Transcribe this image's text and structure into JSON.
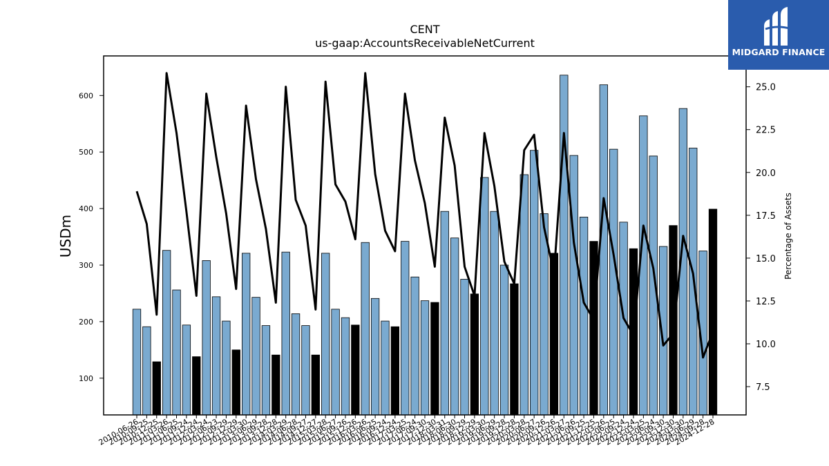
{
  "chart_data": {
    "type": "bar",
    "title": "CENT",
    "subtitle": "us-gaap:AccountsReceivableNetCurrent",
    "ylabel": "USDm",
    "y2label": "Percentage of Assets",
    "ylim": [
      35,
      670
    ],
    "y2lim": [
      5.85,
      26.8
    ],
    "yticks": [
      100,
      200,
      300,
      400,
      500,
      600
    ],
    "y2ticks": [
      "7.5",
      "10.0",
      "12.5",
      "15.0",
      "17.5",
      "20.0",
      "22.5",
      "25.0"
    ],
    "bar_color": "#7aaad0",
    "highlight_color": "#000000",
    "line_color": "#000000",
    "categories": [
      "2010-06-26",
      "2010-09-25",
      "2010-12-25",
      "2011-03-26",
      "2011-06-25",
      "2011-09-24",
      "2011-12-24",
      "2012-03-24",
      "2012-06-23",
      "2012-09-29",
      "2012-12-29",
      "2013-03-30",
      "2013-06-29",
      "2013-09-28",
      "2013-12-28",
      "2014-03-29",
      "2014-06-28",
      "2014-09-27",
      "2014-12-27",
      "2015-03-28",
      "2015-06-27",
      "2015-09-26",
      "2015-12-26",
      "2016-03-26",
      "2016-06-25",
      "2016-09-24",
      "2016-12-24",
      "2017-03-25",
      "2017-06-24",
      "2017-09-30",
      "2017-12-30",
      "2018-03-31",
      "2018-06-30",
      "2018-09-29",
      "2018-12-29",
      "2019-03-30",
      "2019-06-29",
      "2019-09-28",
      "2019-12-28",
      "2020-03-28",
      "2020-06-27",
      "2020-09-26",
      "2020-12-26",
      "2021-03-27",
      "2021-06-26",
      "2021-09-25",
      "2021-12-25",
      "2022-03-26",
      "2022-06-25",
      "2022-09-24",
      "2022-12-24",
      "2023-03-25",
      "2023-06-24",
      "2023-09-30",
      "2023-12-30",
      "2024-03-30",
      "2024-06-29",
      "2024-09-28",
      "2024-12-28"
    ],
    "tick_labels": [
      "2010-06-26",
      "2010-09-25",
      "2010-12-25",
      "2011-03-26",
      "2011-06-25",
      "2011-09-24",
      "2011-12-24",
      "2012-03-24",
      "2012-06-23",
      "2012-09-29",
      "2012-12-29",
      "2013-03-30",
      "2013-06-29",
      "2013-09-28",
      "2013-12-28",
      "2014-03-29",
      "2014-06-28",
      "2014-09-27",
      "2014-12-27",
      "2015-03-28",
      "2015-06-27",
      "2015-09-26",
      "2015-12-26",
      "2016-03-26",
      "2016-06-25",
      "2016-09-24",
      "2016-12-24",
      "2017-03-25",
      "2017-06-24",
      "2017-09-30",
      "2017-12-30",
      "2018-03-31",
      "2018-06-30",
      "2018-09-29",
      "2018-12-29",
      "2019-03-30",
      "2019-06-29",
      "2019-09-28",
      "2019-12-28",
      "2020-03-28",
      "2020-06-27",
      "2020-09-26",
      "2020-12-26",
      "2021-03-27",
      "2021-06-26",
      "2021-09-25",
      "2021-12-25",
      "2022-03-26",
      "2022-06-25",
      "2022-09-24",
      "2022-12-24",
      "2023-03-25",
      "2023-06-24",
      "2023-09-30",
      "2023-12-30",
      "2024-03-30",
      "2024-06-29",
      "2024-09-28",
      "2024-12-28"
    ],
    "series": [
      {
        "name": "AccountsReceivableNetCurrent",
        "kind": "bar",
        "values": [
          222,
          191,
          129,
          326,
          256,
          194,
          138,
          308,
          244,
          201,
          150,
          321,
          243,
          193,
          141,
          323,
          214,
          193,
          141,
          321,
          222,
          207,
          194,
          340,
          241,
          201,
          191,
          342,
          279,
          237,
          234,
          395,
          348,
          275,
          249,
          455,
          395,
          300,
          267,
          460,
          503,
          391,
          321,
          636,
          494,
          385,
          342,
          619,
          505,
          376,
          329,
          564,
          493,
          333,
          370,
          577,
          507,
          325,
          399
        ],
        "highlighted": [
          false,
          false,
          true,
          false,
          false,
          false,
          true,
          false,
          false,
          false,
          true,
          false,
          false,
          false,
          true,
          false,
          false,
          false,
          true,
          false,
          false,
          false,
          true,
          false,
          false,
          false,
          true,
          false,
          false,
          false,
          true,
          false,
          false,
          false,
          true,
          false,
          false,
          false,
          true,
          false,
          false,
          false,
          true,
          false,
          false,
          false,
          true,
          false,
          false,
          false,
          true,
          false,
          false,
          false,
          true,
          false,
          false,
          false,
          true
        ]
      },
      {
        "name": "Percentage of Assets",
        "kind": "line",
        "axis": "right",
        "values": [
          18.9,
          17.0,
          11.7,
          25.8,
          22.3,
          17.7,
          12.8,
          24.6,
          20.9,
          17.6,
          13.2,
          23.9,
          19.6,
          16.7,
          12.4,
          25.0,
          18.4,
          16.9,
          12.0,
          25.3,
          19.3,
          18.3,
          16.1,
          25.8,
          19.9,
          16.6,
          15.4,
          24.6,
          20.7,
          18.2,
          14.5,
          23.2,
          20.4,
          14.5,
          12.8,
          22.3,
          19.2,
          14.8,
          13.5,
          21.3,
          22.2,
          16.8,
          14.1,
          22.3,
          15.9,
          12.4,
          11.4,
          18.5,
          15.2,
          11.5,
          10.5,
          16.9,
          14.4,
          9.9,
          10.6,
          16.3,
          14.1,
          9.2,
          10.7
        ]
      }
    ]
  },
  "logo": {
    "text": "MIDGARD FINANCE",
    "background": "#2a5cad"
  }
}
